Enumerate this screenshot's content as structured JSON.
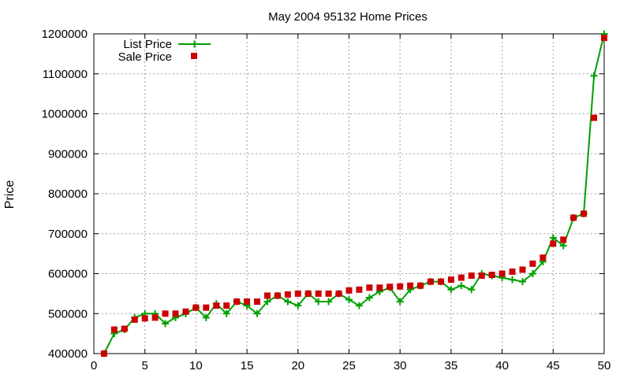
{
  "chart_data": {
    "type": "line",
    "title": "May 2004 95132 Home Prices",
    "xlabel": "",
    "ylabel": "Price",
    "xlim": [
      0,
      50
    ],
    "ylim": [
      400000,
      1200000
    ],
    "xticks": [
      0,
      5,
      10,
      15,
      20,
      25,
      30,
      35,
      40,
      45,
      50
    ],
    "yticks": [
      400000,
      500000,
      600000,
      700000,
      800000,
      900000,
      1000000,
      1100000,
      1200000
    ],
    "grid": true,
    "legend_position": "top-left",
    "x": [
      1,
      2,
      3,
      4,
      5,
      6,
      7,
      8,
      9,
      10,
      11,
      12,
      13,
      14,
      15,
      16,
      17,
      18,
      19,
      20,
      21,
      22,
      23,
      24,
      25,
      26,
      27,
      28,
      29,
      30,
      31,
      32,
      33,
      34,
      35,
      36,
      37,
      38,
      39,
      40,
      41,
      42,
      43,
      44,
      45,
      46,
      47,
      48,
      49,
      50
    ],
    "series": [
      {
        "name": "List Price",
        "style": "line-points",
        "color": "#00a000",
        "values": [
          400000,
          450000,
          460000,
          490000,
          500000,
          500000,
          475000,
          490000,
          500000,
          515000,
          490000,
          525000,
          500000,
          530000,
          520000,
          500000,
          530000,
          545000,
          530000,
          520000,
          550000,
          530000,
          530000,
          550000,
          535000,
          520000,
          540000,
          555000,
          565000,
          530000,
          560000,
          570000,
          580000,
          580000,
          560000,
          570000,
          560000,
          600000,
          595000,
          590000,
          585000,
          580000,
          600000,
          630000,
          690000,
          670000,
          740000,
          750000,
          1095000,
          1200000
        ]
      },
      {
        "name": "Sale Price",
        "style": "points",
        "color": "#cc0000",
        "values": [
          400000,
          460000,
          462000,
          485000,
          488000,
          490000,
          500000,
          500000,
          505000,
          515000,
          515000,
          520000,
          520000,
          530000,
          530000,
          530000,
          545000,
          545000,
          548000,
          550000,
          550000,
          550000,
          550000,
          550000,
          558000,
          560000,
          565000,
          565000,
          567000,
          568000,
          570000,
          570000,
          580000,
          580000,
          585000,
          590000,
          595000,
          595000,
          597000,
          600000,
          605000,
          610000,
          625000,
          640000,
          675000,
          685000,
          740000,
          750000,
          990000,
          1190000
        ]
      }
    ]
  }
}
